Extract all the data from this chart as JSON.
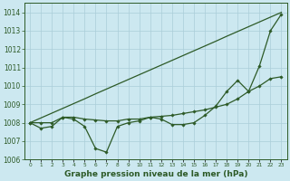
{
  "bg_color": "#cce8f0",
  "plot_bg_color": "#cce8f0",
  "line_color": "#2d5a27",
  "grid_color": "#aacdd8",
  "xlabel": "Graphe pression niveau de la mer (hPa)",
  "ylim": [
    1006,
    1014.5
  ],
  "yticks": [
    1006,
    1007,
    1008,
    1009,
    1010,
    1011,
    1012,
    1013,
    1014
  ],
  "xlim": [
    -0.5,
    23.5
  ],
  "xticks": [
    0,
    1,
    2,
    3,
    4,
    5,
    6,
    7,
    8,
    9,
    10,
    11,
    12,
    13,
    14,
    15,
    16,
    17,
    18,
    19,
    20,
    21,
    22,
    23
  ],
  "series_straight": [
    1008.0,
    1008.26,
    1008.52,
    1008.78,
    1009.04,
    1009.3,
    1009.57,
    1009.83,
    1010.09,
    1010.35,
    1010.61,
    1010.87,
    1011.13,
    1011.39,
    1011.65,
    1011.91,
    1012.17,
    1012.43,
    1012.7,
    1012.96,
    1013.22,
    1013.48,
    1013.74,
    1014.0
  ],
  "series_smooth": [
    1008.0,
    1008.0,
    1008.0,
    1008.3,
    1008.3,
    1008.2,
    1008.15,
    1008.1,
    1008.1,
    1008.2,
    1008.2,
    1008.3,
    1008.35,
    1008.4,
    1008.5,
    1008.6,
    1008.7,
    1008.85,
    1009.0,
    1009.3,
    1009.7,
    1010.0,
    1010.4,
    1010.5
  ],
  "series_zigzag": [
    1008.0,
    1007.7,
    1007.8,
    1008.3,
    1008.2,
    1007.8,
    1006.6,
    1006.4,
    1007.8,
    1008.0,
    1008.1,
    1008.3,
    1008.2,
    1007.9,
    1007.9,
    1008.0,
    1008.4,
    1008.9,
    1009.7,
    1010.3,
    1009.7,
    1011.1,
    1013.0,
    1013.9
  ],
  "ytick_fontsize": 5.5,
  "xtick_fontsize": 4.2,
  "xlabel_fontsize": 6.5
}
